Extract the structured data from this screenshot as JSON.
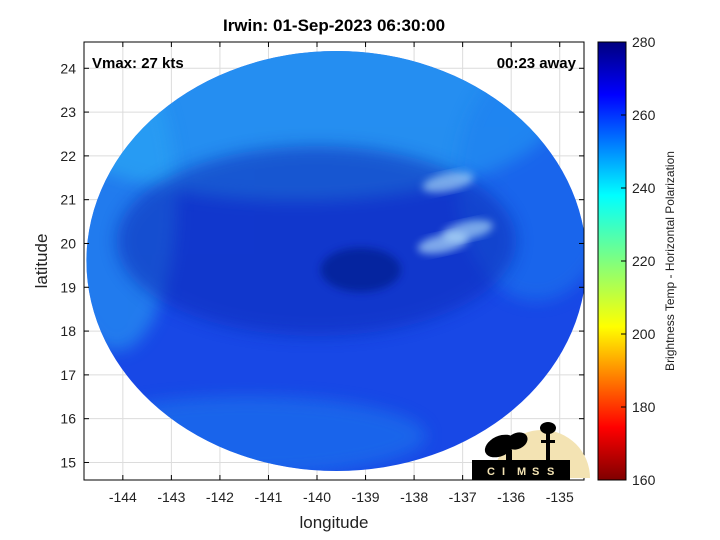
{
  "chart_data": {
    "type": "heatmap",
    "title": "Irwin: 01-Sep-2023 06:30:00",
    "xlabel": "longitude",
    "ylabel": "latitude",
    "xlim": [
      -144.8,
      -134.5
    ],
    "ylim": [
      14.6,
      24.6
    ],
    "xticks": [
      -144,
      -143,
      -142,
      -141,
      -140,
      -139,
      -138,
      -137,
      -136,
      -135
    ],
    "yticks": [
      15,
      16,
      17,
      18,
      19,
      20,
      21,
      22,
      23,
      24
    ],
    "grid": true,
    "annotations": {
      "vmax": "Vmax: 27 kts",
      "time_away": "00:23 away"
    },
    "colorbar": {
      "label": "Brightness Temp - Horizontal Polarization",
      "min": 160,
      "max": 280,
      "ticks": [
        160,
        180,
        200,
        220,
        240,
        260,
        280
      ],
      "colormap": "jet"
    },
    "swath": {
      "center": [
        -139.6,
        19.6
      ],
      "dominant_value_range": [
        255,
        270
      ],
      "warm_core_near": [
        -139.1,
        19.4
      ],
      "cool_bands": [
        {
          "lon": -137.4,
          "lat": 20.0,
          "value": 232
        },
        {
          "lon": -136.9,
          "lat": 20.3,
          "value": 236
        },
        {
          "lon": -137.3,
          "lat": 21.4,
          "value": 238
        }
      ]
    },
    "logo_text": "CIMSS"
  },
  "colors": {
    "axis": "#000000",
    "grid": "#dcdcdc",
    "swath_base": "#1848e6",
    "swath_dark": "#0a2ab8",
    "swath_light": "#2aa6f4"
  }
}
